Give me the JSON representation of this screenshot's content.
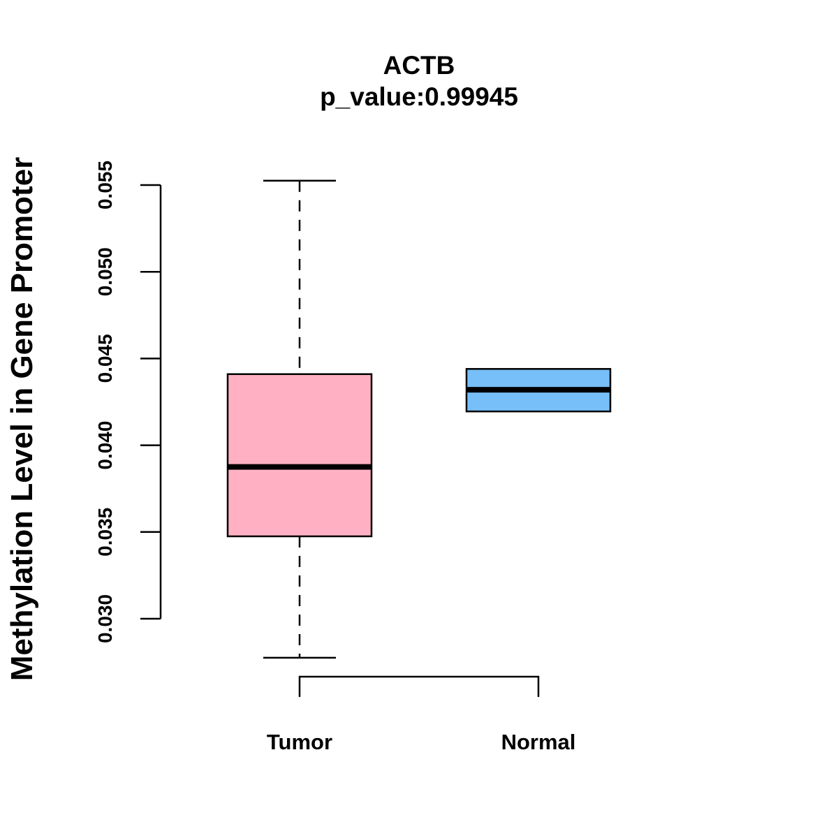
{
  "chart_data": {
    "type": "boxplot",
    "title": "ACTB",
    "subtitle": "p_value:0.99945",
    "xlabel": "",
    "ylabel": "Methylation Level in Gene Promoter",
    "ylim": [
      0.03,
      0.055
    ],
    "yticks": [
      "0.030",
      "0.035",
      "0.040",
      "0.045",
      "0.050",
      "0.055"
    ],
    "categories": [
      "Tumor",
      "Normal"
    ],
    "boxes": [
      {
        "category": "Tumor",
        "whisker_low": 0.02775,
        "q1": 0.03475,
        "median": 0.03875,
        "q3": 0.0441,
        "whisker_high": 0.05525,
        "color": "#FFB1C3"
      },
      {
        "category": "Normal",
        "whisker_low": 0.04195,
        "q1": 0.04195,
        "median": 0.0432,
        "q3": 0.0444,
        "whisker_high": 0.0444,
        "color": "#77BFF8"
      }
    ],
    "bracket": {
      "from": "Tumor",
      "to": "Normal",
      "label": ""
    },
    "grid": false,
    "legend": "none"
  }
}
